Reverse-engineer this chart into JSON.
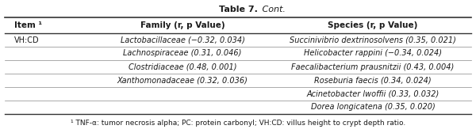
{
  "title_bold": "Table 7.",
  "title_italic": " Cont.",
  "headers": [
    "Item ¹",
    "Family (r, p Value)",
    "Species (r, p Value)"
  ],
  "rows": [
    [
      "VH:CD",
      "Lactobacillaceae (−0.32, 0.034)",
      "Succinivibrio dextrinosolvens (0.35, 0.021)"
    ],
    [
      "",
      "Lachnospiraceae (0.31, 0.046)",
      "Helicobacter rappini (−0.34, 0.024)"
    ],
    [
      "",
      "Clostridiaceae (0.48, 0.001)",
      "Faecalibacterium prausnitzii (0.43, 0.004)"
    ],
    [
      "",
      "Xanthomonadaceae (0.32, 0.036)",
      "Roseburia faecis (0.34, 0.024)"
    ],
    [
      "",
      "",
      "Acinetobacter lwoffii (0.33, 0.032)"
    ],
    [
      "",
      "",
      "Dorea longicatena (0.35, 0.020)"
    ]
  ],
  "footnote": "¹ TNF-α: tumor necrosis alpha; PC: protein carbonyl; VH:CD: villus height to crypt depth ratio.",
  "background_color": "#ffffff",
  "text_color": "#1a1a1a",
  "header_fontsize": 7.5,
  "cell_fontsize": 7.0,
  "title_fontsize": 8.0,
  "footnote_fontsize": 6.5
}
